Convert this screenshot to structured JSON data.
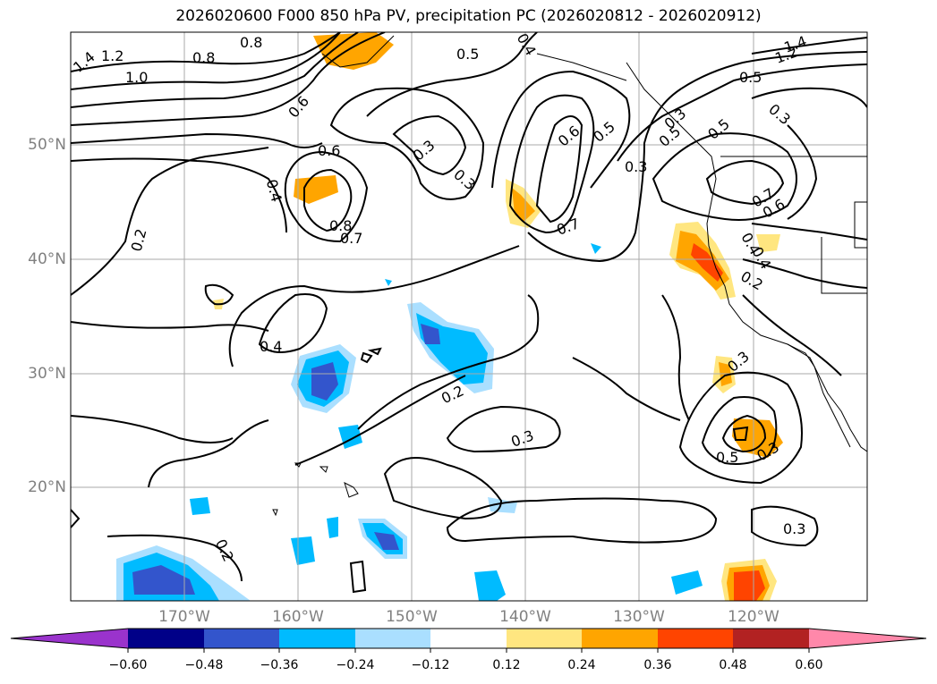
{
  "title": "2026020600 F000 850 hPa PV, precipitation PC (2026020812 - 2026020912)",
  "lat_labels": [
    "50°N",
    "40°N",
    "30°N",
    "20°N"
  ],
  "lon_labels": [
    "170°W",
    "160°W",
    "150°W",
    "140°W",
    "130°W",
    "120°W"
  ],
  "colorbar": {
    "ticks": [
      "−0.60",
      "−0.48",
      "−0.36",
      "−0.24",
      "−0.12",
      "0.12",
      "0.24",
      "0.36",
      "0.48",
      "0.60"
    ],
    "colors": [
      "#9a33cc",
      "#000088",
      "#3355cc",
      "#00bbff",
      "#aadfff",
      "#ffffff",
      "#ffe680",
      "#ffa500",
      "#ff4400",
      "#b22222",
      "#ff88aa"
    ]
  },
  "contour_labels": [
    "1.4",
    "1.2",
    "1.0",
    "0.8",
    "0.8",
    "0.6",
    "0.6",
    "0.4",
    "0.8",
    "0.7",
    "0.2",
    "0.4",
    "0.5",
    "0.3",
    "0.3",
    "0.4",
    "0.6",
    "0.5",
    "0.7",
    "0.3",
    "0.2",
    "0.3",
    "0.3",
    "0.2",
    "0.5",
    "0.3",
    "1.4",
    "1.2",
    "0.5",
    "0.3",
    "0.5",
    "0.7",
    "0.6",
    "0.4",
    "0.2",
    "0.4",
    "0.5",
    "0.3",
    "0.3"
  ]
}
